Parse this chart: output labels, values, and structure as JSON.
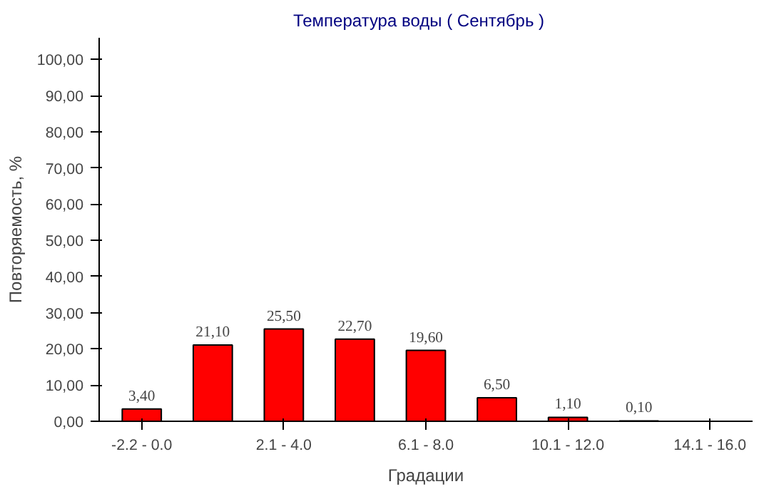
{
  "chart_data": {
    "type": "bar",
    "title": "Температура воды    ( Сентябрь )",
    "xlabel": "Градации",
    "ylabel": "Повторяемость, %",
    "categories": [
      "-2.2 - 0.0",
      null,
      "2.1 - 4.0",
      null,
      "6.1 - 8.0",
      null,
      "10.1 - 12.0",
      null,
      "14.1 - 16.0"
    ],
    "values": [
      3.4,
      21.1,
      25.5,
      22.7,
      19.6,
      6.5,
      1.1,
      0.1,
      null
    ],
    "value_labels": [
      "3,40",
      "21,10",
      "25,50",
      "22,70",
      "19,60",
      "6,50",
      "1,10",
      "0,10",
      null
    ],
    "color": "#ff0000",
    "ylim": [
      0,
      106
    ],
    "yticks": [
      {
        "value": 0,
        "label": "0,00"
      },
      {
        "value": 10,
        "label": "10,00"
      },
      {
        "value": 20,
        "label": "20,00"
      },
      {
        "value": 30,
        "label": "30,00"
      },
      {
        "value": 40,
        "label": "40,00"
      },
      {
        "value": 50,
        "label": "50,00"
      },
      {
        "value": 60,
        "label": "60,00"
      },
      {
        "value": 70,
        "label": "70,00"
      },
      {
        "value": 80,
        "label": "80,00"
      },
      {
        "value": 90,
        "label": "90,00"
      },
      {
        "value": 100,
        "label": "100,00"
      }
    ],
    "grid": false
  }
}
